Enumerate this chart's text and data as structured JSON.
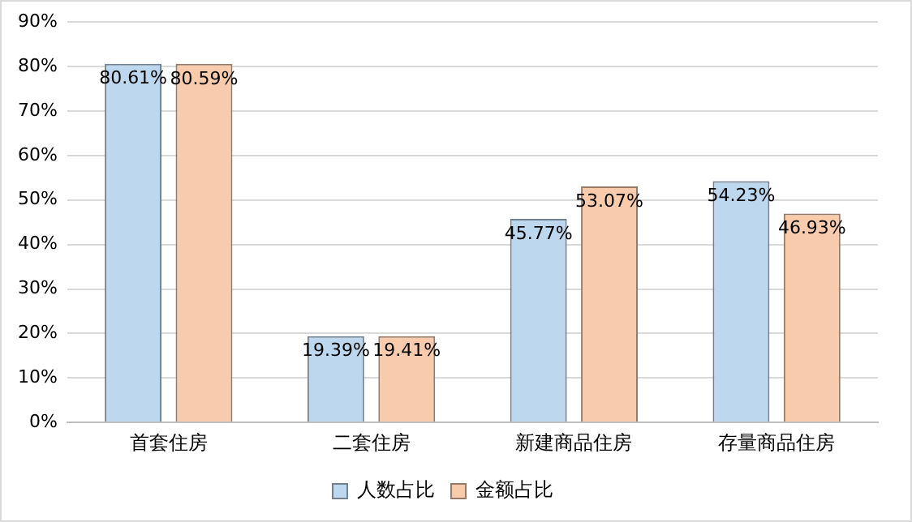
{
  "chart_data": {
    "type": "bar",
    "categories": [
      "首套住房",
      "二套住房",
      "新建商品住房",
      "存量商品住房"
    ],
    "series": [
      {
        "name": "人数占比",
        "color": "#bdd7ee",
        "values": [
          80.61,
          19.39,
          45.77,
          54.23
        ],
        "value_labels": [
          "80.61%",
          "19.39%",
          "45.77%",
          "54.23%"
        ]
      },
      {
        "name": "金额占比",
        "color": "#f8cbad",
        "values": [
          80.59,
          19.41,
          53.07,
          46.93
        ],
        "value_labels": [
          "80.59%",
          "19.41%",
          "53.07%",
          "46.93%"
        ]
      }
    ],
    "ylim": [
      0,
      90
    ],
    "yticks": [
      {
        "value": 0,
        "label": "0%"
      },
      {
        "value": 10,
        "label": "10%"
      },
      {
        "value": 20,
        "label": "20%"
      },
      {
        "value": 30,
        "label": "30%"
      },
      {
        "value": 40,
        "label": "40%"
      },
      {
        "value": 50,
        "label": "50%"
      },
      {
        "value": 60,
        "label": "60%"
      },
      {
        "value": 70,
        "label": "70%"
      },
      {
        "value": 80,
        "label": "80%"
      },
      {
        "value": 90,
        "label": "90%"
      }
    ],
    "grid": "y",
    "legend": "bottom"
  }
}
